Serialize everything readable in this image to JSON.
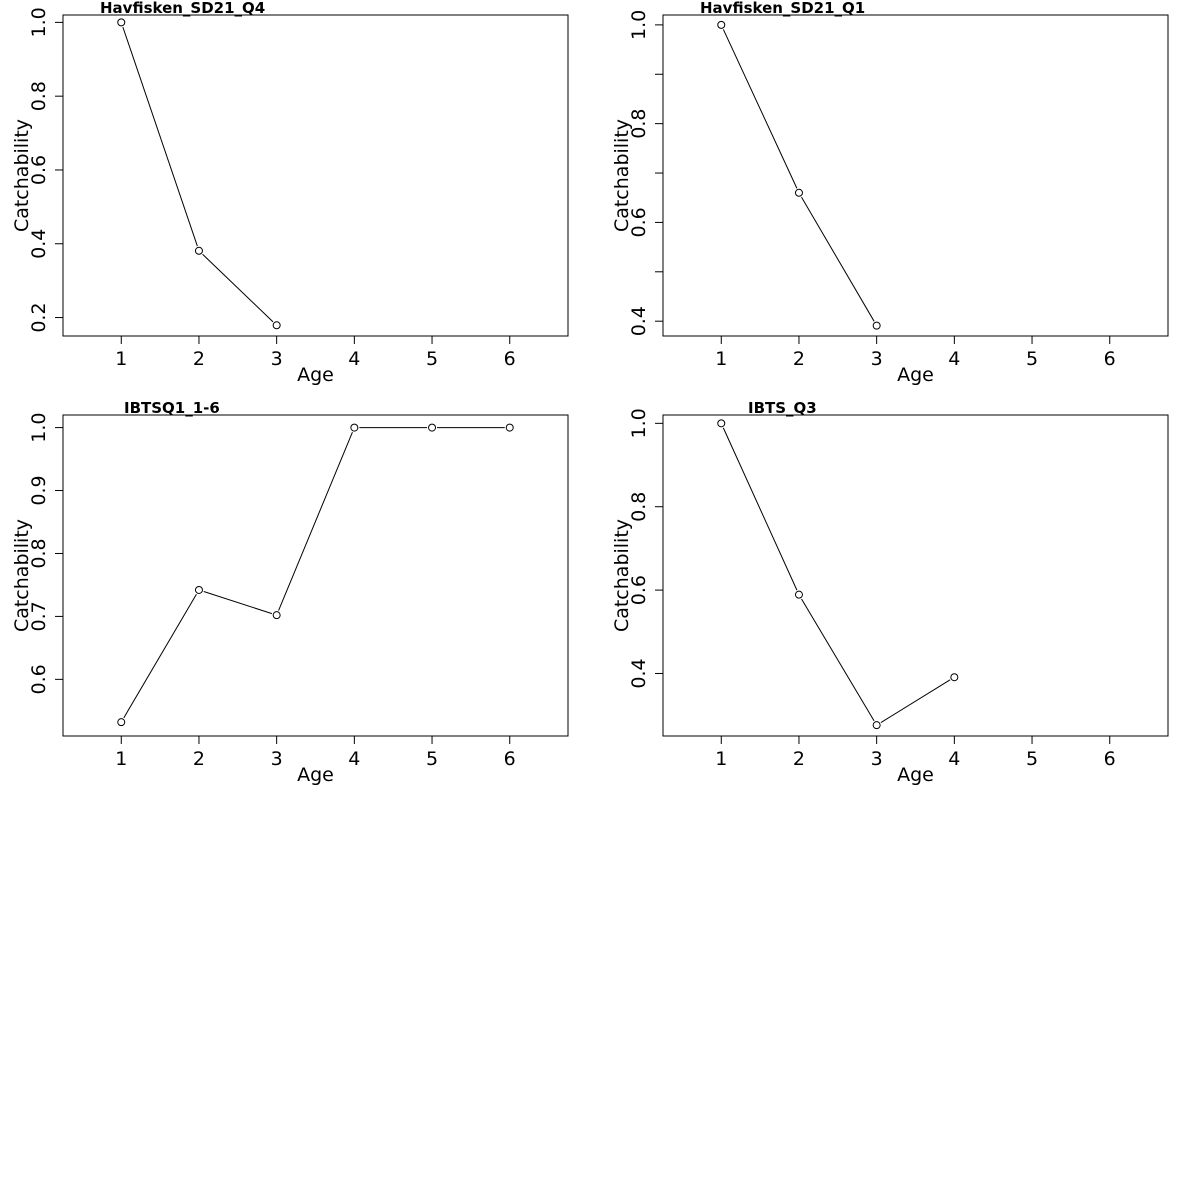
{
  "chart_data": [
    {
      "type": "line",
      "title": "Havfisken_SD21_Q4",
      "xlabel": "Age",
      "ylabel": "Catchability",
      "xlim": [
        0.25,
        6.75
      ],
      "ylim": [
        0.15,
        1.02
      ],
      "x_ticks": [
        1,
        2,
        3,
        4,
        5,
        6
      ],
      "y_ticks": [
        0.2,
        0.4,
        0.6,
        0.8,
        1.0
      ],
      "y_tick_labels": [
        "0.2",
        "0.4",
        "0.6",
        "0.8",
        "1.0"
      ],
      "series": [
        {
          "x": [
            1,
            2,
            3
          ],
          "y": [
            1.0,
            0.381,
            0.179
          ]
        }
      ]
    },
    {
      "type": "line",
      "title": "Havfisken_SD21_Q1",
      "xlabel": "Age",
      "ylabel": "Catchability",
      "xlim": [
        0.25,
        6.75
      ],
      "ylim": [
        0.37,
        1.02
      ],
      "x_ticks": [
        1,
        2,
        3,
        4,
        5,
        6
      ],
      "y_ticks": [
        0.4,
        0.5,
        0.6,
        0.7,
        0.8,
        0.9,
        1.0
      ],
      "y_tick_labels": [
        "0.4",
        "",
        "0.6",
        "",
        "0.8",
        "",
        "1.0"
      ],
      "series": [
        {
          "x": [
            1,
            2,
            3
          ],
          "y": [
            1.0,
            0.66,
            0.391
          ]
        }
      ]
    },
    {
      "type": "line",
      "title": "IBTSQ1_1-6",
      "xlabel": "Age",
      "ylabel": "Catchability",
      "xlim": [
        0.25,
        6.75
      ],
      "ylim": [
        0.51,
        1.02
      ],
      "x_ticks": [
        1,
        2,
        3,
        4,
        5,
        6
      ],
      "y_ticks": [
        0.6,
        0.7,
        0.8,
        0.9,
        1.0
      ],
      "y_tick_labels": [
        "0.6",
        "0.7",
        "0.8",
        "0.9",
        "1.0"
      ],
      "series": [
        {
          "x": [
            1,
            2,
            3,
            4,
            5,
            6
          ],
          "y": [
            0.532,
            0.742,
            0.702,
            1.0,
            1.0,
            1.0
          ]
        }
      ]
    },
    {
      "type": "line",
      "title": "IBTS_Q3",
      "xlabel": "Age",
      "ylabel": "Catchability",
      "xlim": [
        0.25,
        6.75
      ],
      "ylim": [
        0.25,
        1.02
      ],
      "x_ticks": [
        1,
        2,
        3,
        4,
        5,
        6
      ],
      "y_ticks": [
        0.4,
        0.6,
        0.8,
        1.0
      ],
      "y_tick_labels": [
        "0.4",
        "0.6",
        "0.8",
        "1.0"
      ],
      "series": [
        {
          "x": [
            1,
            2,
            3,
            4
          ],
          "y": [
            1.0,
            0.589,
            0.276,
            0.391
          ]
        }
      ]
    }
  ]
}
